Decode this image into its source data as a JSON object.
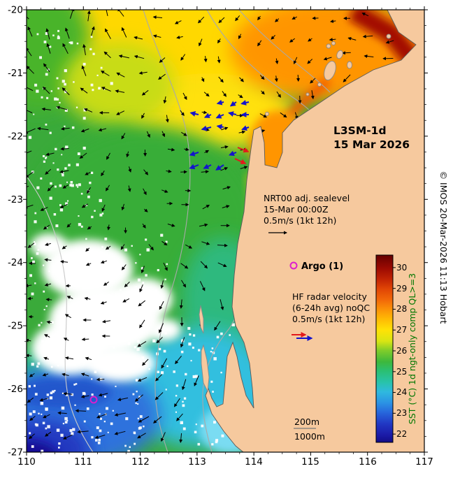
{
  "figure": {
    "product_title": "L3SM-1d",
    "product_date": "15 Mar 2026",
    "credit": "© IMOS 20-Mar-2026 11:13 Hobart"
  },
  "legends": {
    "sealevel": {
      "line1": "NRT00 adj. sealevel",
      "line2": "15-Mar 00:00Z",
      "line3": "0.5m/s (1kt 12h)"
    },
    "argo": {
      "label": "Argo (1)"
    },
    "hf_radar": {
      "line1": "HF radar velocity",
      "line2": "(6-24h avg) noQC",
      "line3": "0.5m/s (1kt 12h)"
    },
    "isobaths": {
      "shallow": "200m",
      "deep": "1000m"
    }
  },
  "axes": {
    "x_label_values": [
      "110",
      "111",
      "112",
      "113",
      "114",
      "115",
      "116",
      "117"
    ],
    "y_label_values": [
      "-20",
      "-21",
      "-22",
      "-23",
      "-24",
      "-25",
      "-26",
      "-27"
    ]
  },
  "colorbar": {
    "title": "SST (°C) 1d ngt-only comp QL>=3",
    "tick_labels": [
      "30",
      "29",
      "28",
      "27",
      "26",
      "25",
      "24",
      "23",
      "22"
    ]
  },
  "colors": {
    "land": "#f6c99e",
    "hf_text": "#8b0000",
    "argo_marker": "#dd1ecc",
    "hf_blue": "#1414cc",
    "hf_red": "#e31a1c",
    "cb_title_green": "#007700"
  },
  "chart_data": {
    "type": "heatmap",
    "description": "Sea surface temperature map, Western Australia coast",
    "lon_range": [
      110,
      117
    ],
    "lat_range": [
      -27,
      -20
    ],
    "lon_ticks": [
      110,
      111,
      112,
      113,
      114,
      115,
      116,
      117
    ],
    "lat_ticks": [
      -20,
      -21,
      -22,
      -23,
      -24,
      -25,
      -26,
      -27
    ],
    "sst_scale_c": {
      "tick_min": 22,
      "tick_max": 30
    },
    "isobaths_m": [
      200,
      1000
    ],
    "argo_float_position": {
      "lon": 111.2,
      "lat": -26.2
    },
    "hf_radar_coverage": {
      "lon": [
        113.0,
        113.9
      ],
      "lat": [
        -22.5,
        -21.4
      ]
    },
    "vector_scale": "0.5m/s (1kt 12h)"
  }
}
